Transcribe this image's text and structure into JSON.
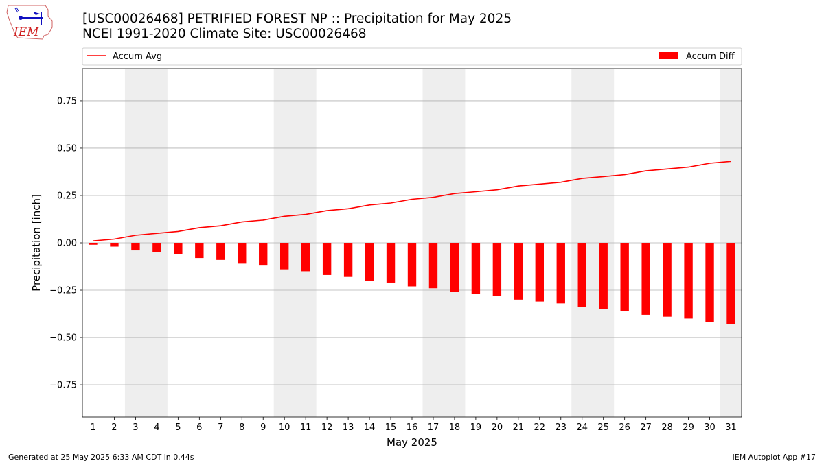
{
  "logo": {
    "text": "IEM"
  },
  "title": {
    "line1": "[USC00026468] PETRIFIED FOREST NP :: Precipitation for May 2025",
    "line2": "NCEI 1991-2020 Climate Site: USC00026468"
  },
  "footer": {
    "left": "Generated at 25 May 2025 6:33 AM CDT in 0.44s",
    "right": "IEM Autoplot App #17"
  },
  "chart_data": {
    "type": "bar",
    "xlabel": "May 2025",
    "ylabel": "Precipitation [inch]",
    "ylim": [
      -0.92,
      0.92
    ],
    "yticks": [
      -0.75,
      -0.5,
      -0.25,
      0.0,
      0.25,
      0.5,
      0.75
    ],
    "ytick_labels": [
      "−0.75",
      "−0.50",
      "−0.25",
      "0.00",
      "0.25",
      "0.50",
      "0.75"
    ],
    "xlim": [
      0.5,
      31.5
    ],
    "categories": [
      "1",
      "2",
      "3",
      "4",
      "5",
      "6",
      "7",
      "8",
      "9",
      "10",
      "11",
      "12",
      "13",
      "14",
      "15",
      "16",
      "17",
      "18",
      "19",
      "20",
      "21",
      "22",
      "23",
      "24",
      "25",
      "26",
      "27",
      "28",
      "29",
      "30",
      "31"
    ],
    "grid": "horizontal",
    "legend": {
      "placement": "top",
      "entries": [
        "Accum Avg",
        "Accum Diff"
      ]
    },
    "weekend_shading": [
      [
        2.5,
        4.5
      ],
      [
        9.5,
        11.5
      ],
      [
        16.5,
        18.5
      ],
      [
        23.5,
        25.5
      ],
      [
        30.5,
        31.5
      ]
    ],
    "colors": {
      "line": "#ff0000",
      "bar": "#ff0000",
      "shade": "#eeeeee",
      "grid": "#b0b0b0"
    },
    "series": [
      {
        "name": "Accum Avg",
        "type": "line",
        "values": [
          0.01,
          0.02,
          0.04,
          0.05,
          0.06,
          0.08,
          0.09,
          0.11,
          0.12,
          0.14,
          0.15,
          0.17,
          0.18,
          0.2,
          0.21,
          0.23,
          0.24,
          0.26,
          0.27,
          0.28,
          0.3,
          0.31,
          0.32,
          0.34,
          0.35,
          0.36,
          0.38,
          0.39,
          0.4,
          0.42,
          0.43
        ]
      },
      {
        "name": "Accum Diff",
        "type": "bar",
        "values": [
          -0.01,
          -0.02,
          -0.04,
          -0.05,
          -0.06,
          -0.08,
          -0.09,
          -0.11,
          -0.12,
          -0.14,
          -0.15,
          -0.17,
          -0.18,
          -0.2,
          -0.21,
          -0.23,
          -0.24,
          -0.26,
          -0.27,
          -0.28,
          -0.3,
          -0.31,
          -0.32,
          -0.34,
          -0.35,
          -0.36,
          -0.38,
          -0.39,
          -0.4,
          -0.42,
          -0.43
        ]
      }
    ]
  }
}
